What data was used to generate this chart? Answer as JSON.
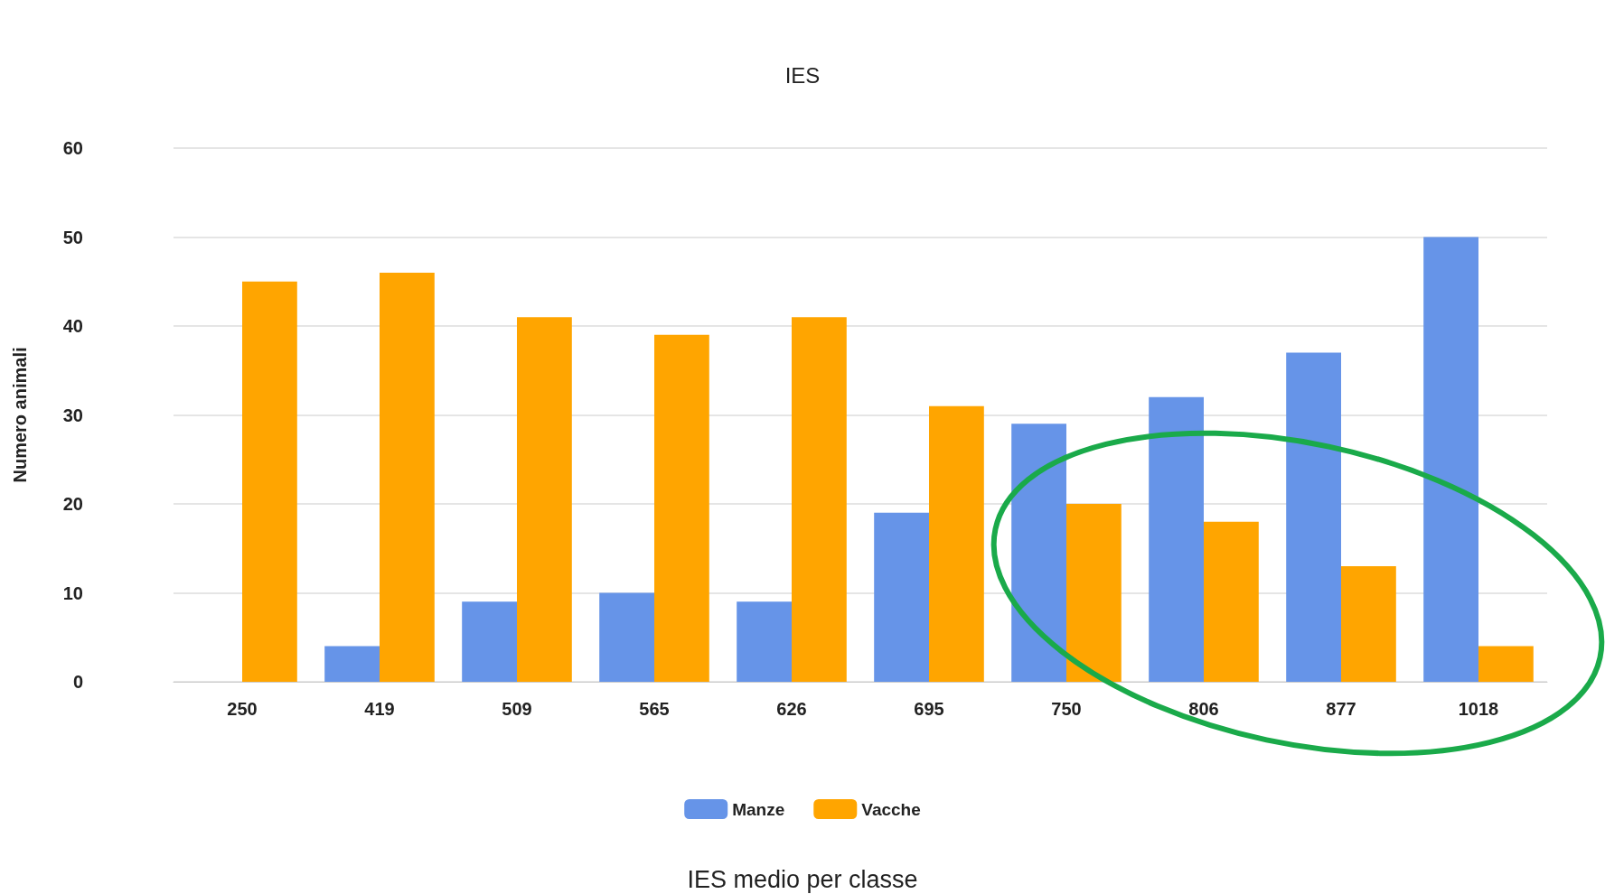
{
  "chart_data": {
    "type": "bar",
    "title": "IES",
    "annotations": [
      "IES medio per classe"
    ],
    "ylabel": "Numero animali",
    "categories": [
      "250",
      "419",
      "509",
      "565",
      "626",
      "695",
      "750",
      "806",
      "877",
      "1018"
    ],
    "series": [
      {
        "name": "Manze",
        "color": "#6694e8",
        "values": [
          0,
          4,
          9,
          10,
          9,
          19,
          29,
          32,
          37,
          50
        ]
      },
      {
        "name": "Vacche",
        "color": "#ffa500",
        "values": [
          45,
          46,
          41,
          39,
          41,
          31,
          20,
          18,
          13,
          4
        ]
      }
    ],
    "ylim": [
      0,
      60
    ],
    "yticks": [
      0,
      10,
      20,
      30,
      40,
      50,
      60
    ],
    "grid": "y",
    "legend": "bottom"
  }
}
